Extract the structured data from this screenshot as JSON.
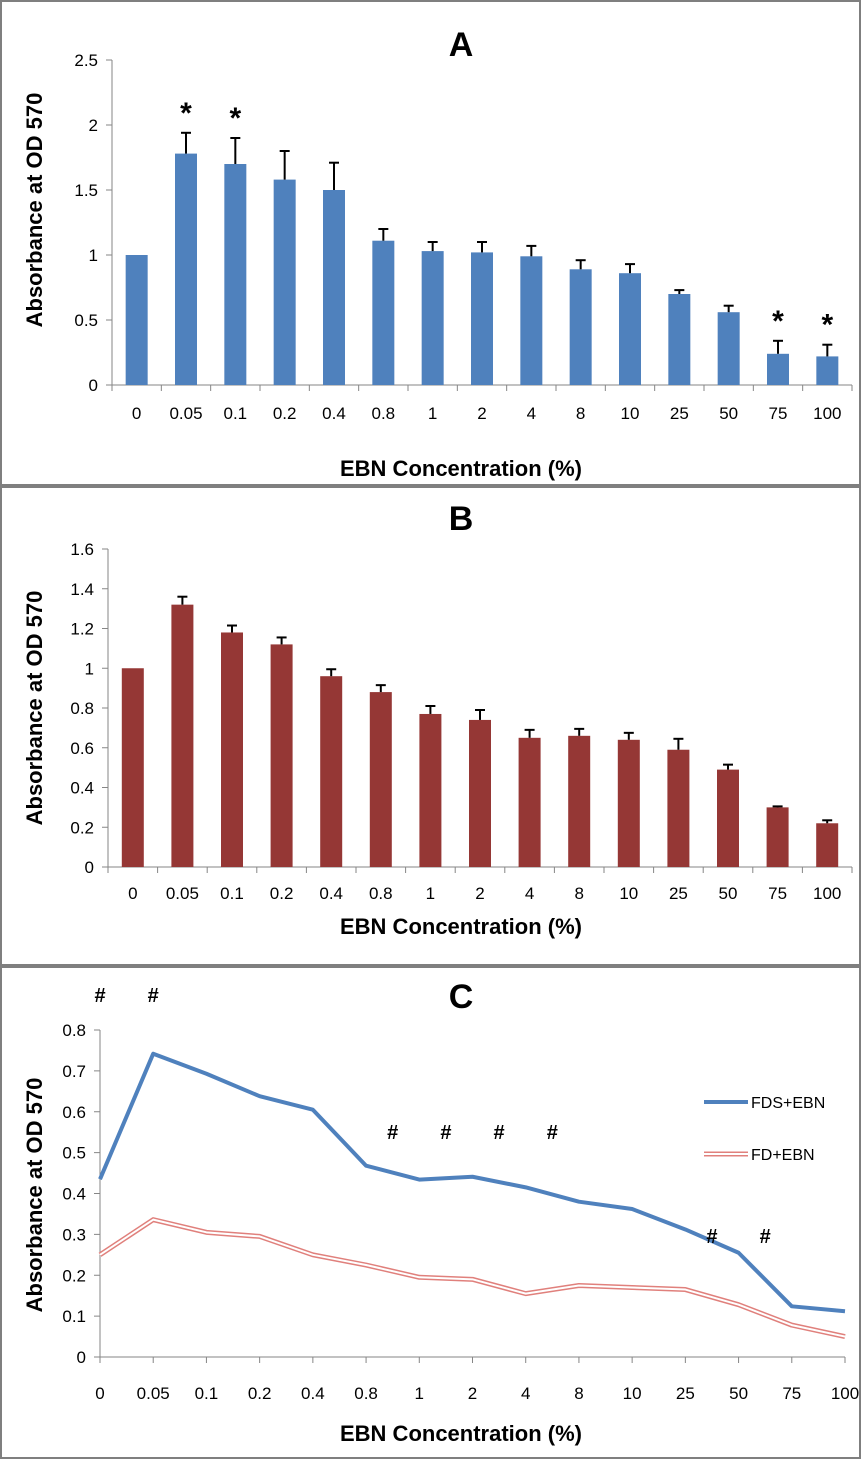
{
  "chart_data": [
    {
      "type": "bar",
      "title": "A",
      "xlabel": "EBN Concentration (%)",
      "ylabel": "Absorbance at OD 570",
      "categories": [
        "0",
        "0.05",
        "0.1",
        "0.2",
        "0.4",
        "0.8",
        "1",
        "2",
        "4",
        "8",
        "10",
        "25",
        "50",
        "75",
        "100"
      ],
      "values": [
        1.0,
        1.78,
        1.7,
        1.58,
        1.5,
        1.11,
        1.03,
        1.02,
        0.99,
        0.89,
        0.86,
        0.7,
        0.56,
        0.24,
        0.22
      ],
      "errors": [
        0.0,
        0.16,
        0.2,
        0.22,
        0.21,
        0.09,
        0.07,
        0.08,
        0.08,
        0.07,
        0.07,
        0.03,
        0.05,
        0.1,
        0.09
      ],
      "markers": [
        "",
        "*",
        "*",
        "",
        "",
        "",
        "",
        "",
        "",
        "",
        "",
        "",
        "",
        "*",
        "*"
      ],
      "ylim": [
        0,
        2.5
      ],
      "yticks": [
        "0",
        "0.5",
        "1",
        "1.5",
        "2",
        "2.5"
      ],
      "color": "#4F81BD",
      "grid": false
    },
    {
      "type": "bar",
      "title": "B",
      "xlabel": "EBN Concentration (%)",
      "ylabel": "Absorbance at OD 570",
      "categories": [
        "0",
        "0.05",
        "0.1",
        "0.2",
        "0.4",
        "0.8",
        "1",
        "2",
        "4",
        "8",
        "10",
        "25",
        "50",
        "75",
        "100"
      ],
      "values": [
        1.0,
        1.32,
        1.18,
        1.12,
        0.96,
        0.88,
        0.77,
        0.74,
        0.65,
        0.66,
        0.64,
        0.59,
        0.49,
        0.3,
        0.22
      ],
      "errors": [
        0.0,
        0.04,
        0.035,
        0.035,
        0.035,
        0.035,
        0.04,
        0.05,
        0.04,
        0.035,
        0.035,
        0.055,
        0.025,
        0.005,
        0.015
      ],
      "ylim": [
        0,
        1.6
      ],
      "yticks": [
        "0",
        "0.2",
        "0.4",
        "0.6",
        "0.8",
        "1",
        "1.2",
        "1.4",
        "1.6"
      ],
      "color": "#953735",
      "grid": false
    },
    {
      "type": "line",
      "title": "C",
      "xlabel": "EBN Concentration (%)",
      "ylabel": "Absorbance at OD 570",
      "categories": [
        "0",
        "0.05",
        "0.1",
        "0.2",
        "0.4",
        "0.8",
        "1",
        "2",
        "4",
        "8",
        "10",
        "25",
        "50",
        "75",
        "100"
      ],
      "series": [
        {
          "name": "FDS+EBN",
          "values": [
            0.435,
            0.742,
            0.693,
            0.638,
            0.605,
            0.468,
            0.434,
            0.441,
            0.415,
            0.38,
            0.362,
            0.312,
            0.255,
            0.124,
            0.112
          ],
          "color": "#4F81BD"
        },
        {
          "name": "FD+EBN",
          "values": [
            0.25,
            0.336,
            0.305,
            0.295,
            0.25,
            0.225,
            0.195,
            0.19,
            0.155,
            0.175,
            0.17,
            0.165,
            0.128,
            0.078,
            0.05
          ],
          "color": "#E0807C"
        }
      ],
      "hash_markers": [
        {
          "symbol": "#",
          "between": [
            0,
            0
          ],
          "level": "high"
        },
        {
          "symbol": "#",
          "between": [
            1,
            1
          ],
          "level": "high"
        },
        {
          "symbol": "#",
          "between": [
            5,
            6
          ],
          "level": "mid"
        },
        {
          "symbol": "#",
          "between": [
            6,
            7
          ],
          "level": "mid"
        },
        {
          "symbol": "#",
          "between": [
            7,
            8
          ],
          "level": "mid"
        },
        {
          "symbol": "#",
          "between": [
            8,
            9
          ],
          "level": "mid"
        },
        {
          "symbol": "#",
          "between": [
            11,
            12
          ],
          "level": "low"
        },
        {
          "symbol": "#",
          "between": [
            12,
            13
          ],
          "level": "low"
        }
      ],
      "ylim": [
        0,
        0.8
      ],
      "yticks": [
        "0",
        "0.1",
        "0.2",
        "0.3",
        "0.4",
        "0.5",
        "0.6",
        "0.7",
        "0.8"
      ],
      "legend": "right",
      "grid": false
    }
  ]
}
